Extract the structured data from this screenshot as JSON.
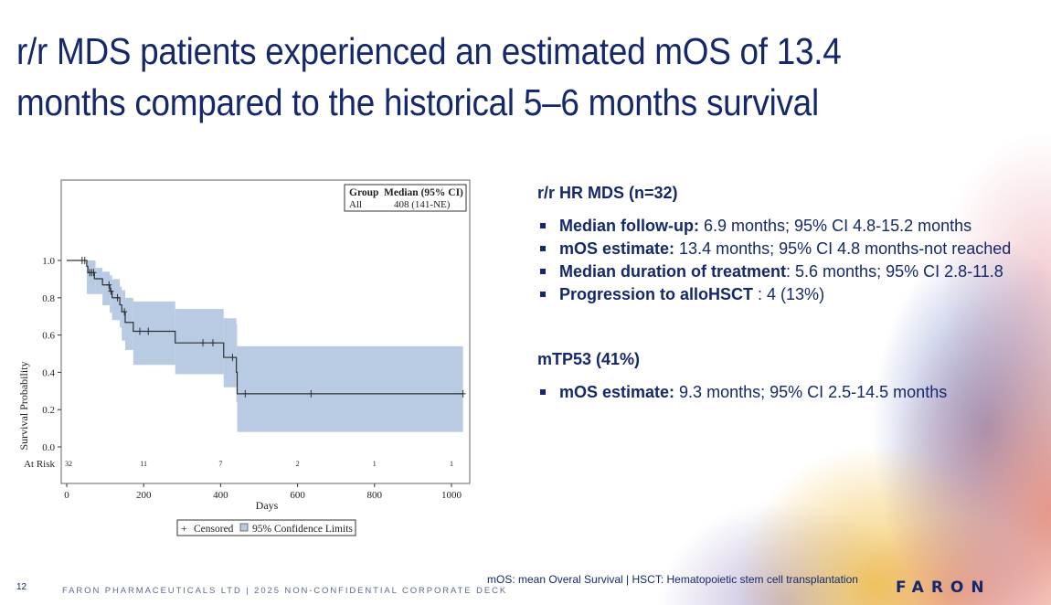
{
  "slide": {
    "title_lines": [
      "r/r MDS patients experienced an estimated mOS of 13.4",
      "months compared to the historical 5–6 months survival"
    ],
    "page_number": "12",
    "footer": "FARON PHARMACEUTICALS LTD | 2025 NON-CONFIDENTIAL CORPORATE DECK",
    "footnote": "mOS: mean Overal Survival | HSCT: Hematopoietic stem cell transplantation",
    "logo": "FARON",
    "brand_color": "#14286b"
  },
  "right": {
    "section1": {
      "heading": "r/r HR MDS (n=32)",
      "bullets": [
        {
          "label": "Median follow-up:",
          "text": " 6.9 months; 95% CI 4.8-15.2 months"
        },
        {
          "label": "mOS estimate:",
          "text": " 13.4 months; 95% CI 4.8 months-not reached"
        },
        {
          "label": "Median duration of treatment",
          "text": ": 5.6 months; 95% CI 2.8-11.8"
        },
        {
          "label": "Progression to alloHSCT",
          "text": " : 4 (13%)"
        }
      ]
    },
    "section2": {
      "heading": "mTP53 (41%)",
      "bullets": [
        {
          "label": "mOS estimate:",
          "text": " 9.3 months; 95% CI 2.5-14.5 months"
        }
      ]
    }
  },
  "chart_data": {
    "type": "line",
    "subtype": "kaplan-meier-step",
    "title": "",
    "xlabel": "Days",
    "ylabel": "Survival Probability",
    "xlim": [
      0,
      1050
    ],
    "ylim": [
      0,
      1.0
    ],
    "xticks": [
      0,
      200,
      400,
      600,
      800,
      1000
    ],
    "yticks": [
      0.0,
      0.2,
      0.4,
      0.6,
      0.8,
      1.0
    ],
    "ytick_labels": [
      "0.0",
      "0.2",
      "0.4",
      "0.6",
      "0.8",
      "1.0"
    ],
    "grid": false,
    "colors": {
      "curve": "#2b3035",
      "ci_band": "#b9cbe3"
    },
    "survival_steps": [
      {
        "day": 0,
        "s": 1.0
      },
      {
        "day": 52,
        "s": 0.968
      },
      {
        "day": 55,
        "s": 0.935
      },
      {
        "day": 72,
        "s": 0.902
      },
      {
        "day": 93,
        "s": 0.869
      },
      {
        "day": 112,
        "s": 0.835
      },
      {
        "day": 118,
        "s": 0.8
      },
      {
        "day": 138,
        "s": 0.762
      },
      {
        "day": 143,
        "s": 0.725
      },
      {
        "day": 152,
        "s": 0.668
      },
      {
        "day": 173,
        "s": 0.62
      },
      {
        "day": 282,
        "s": 0.558
      },
      {
        "day": 408,
        "s": 0.48
      },
      {
        "day": 441,
        "s": 0.4
      },
      {
        "day": 443,
        "s": 0.285
      }
    ],
    "end_day": 1030,
    "ci_steps": [
      {
        "day": 52,
        "lower": 0.82,
        "upper": 1.0
      },
      {
        "day": 75,
        "lower": 0.82,
        "upper": 0.96
      },
      {
        "day": 93,
        "lower": 0.76,
        "upper": 0.94
      },
      {
        "day": 112,
        "lower": 0.72,
        "upper": 0.92
      },
      {
        "day": 118,
        "lower": 0.68,
        "upper": 0.9
      },
      {
        "day": 138,
        "lower": 0.64,
        "upper": 0.86
      },
      {
        "day": 143,
        "lower": 0.57,
        "upper": 0.84
      },
      {
        "day": 152,
        "lower": 0.52,
        "upper": 0.8
      },
      {
        "day": 173,
        "lower": 0.44,
        "upper": 0.78
      },
      {
        "day": 282,
        "lower": 0.39,
        "upper": 0.74
      },
      {
        "day": 408,
        "lower": 0.32,
        "upper": 0.69
      },
      {
        "day": 441,
        "lower": 0.24,
        "upper": 0.66
      },
      {
        "day": 443,
        "lower": 0.08,
        "upper": 0.54
      }
    ],
    "ci_end_day": 1030,
    "censored": [
      {
        "day": 40,
        "s": 1.0
      },
      {
        "day": 47,
        "s": 1.0
      },
      {
        "day": 60,
        "s": 0.935
      },
      {
        "day": 65,
        "s": 0.935
      },
      {
        "day": 70,
        "s": 0.935
      },
      {
        "day": 110,
        "s": 0.869
      },
      {
        "day": 115,
        "s": 0.835
      },
      {
        "day": 132,
        "s": 0.8
      },
      {
        "day": 150,
        "s": 0.725
      },
      {
        "day": 190,
        "s": 0.62
      },
      {
        "day": 212,
        "s": 0.62
      },
      {
        "day": 354,
        "s": 0.558
      },
      {
        "day": 380,
        "s": 0.558
      },
      {
        "day": 431,
        "s": 0.48
      },
      {
        "day": 464,
        "s": 0.285
      },
      {
        "day": 635,
        "s": 0.285
      },
      {
        "day": 1030,
        "s": 0.285
      }
    ],
    "at_risk": {
      "label": "At Risk",
      "days": [
        0,
        200,
        400,
        600,
        800,
        1000
      ],
      "counts": [
        "32",
        "11",
        "7",
        "2",
        "1",
        "1"
      ]
    },
    "inset_table": {
      "header": [
        "Group",
        "Median (95% CI)"
      ],
      "rows": [
        [
          "All",
          "408 (141-NE)"
        ]
      ]
    },
    "legend": {
      "position": "bottom",
      "items": [
        {
          "symbol": "+",
          "label": "Censored"
        },
        {
          "symbol": "box",
          "label": "95% Confidence Limits"
        }
      ]
    }
  }
}
